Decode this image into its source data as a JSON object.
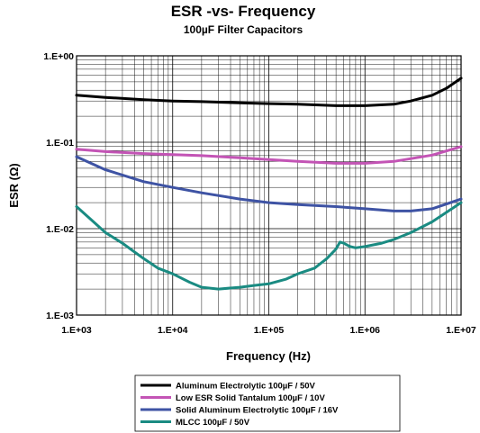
{
  "chart_data": {
    "type": "line",
    "title": "ESR -vs- Frequency",
    "subtitle": "100µF Filter Capacitors",
    "xlabel": "Frequency (Hz)",
    "ylabel": "ESR (Ω)",
    "x_scale": "log",
    "y_scale": "log",
    "xlim": [
      1000,
      10000000
    ],
    "ylim": [
      0.001,
      1
    ],
    "x_ticks": [
      "1.E+03",
      "1.E+04",
      "1.E+05",
      "1.E+06",
      "1.E+07"
    ],
    "y_ticks": [
      "1.E+00",
      "1.E-01",
      "1.E-02",
      "1.E-03"
    ],
    "grid": "on (major and minor, both axes)",
    "legend_position": "bottom-center",
    "series": [
      {
        "name": "Aluminum Electrolytic 100µF / 50V",
        "color": "#000000",
        "x": [
          1000,
          2000,
          5000,
          10000,
          20000,
          50000,
          100000,
          200000,
          500000,
          1000000,
          2000000,
          3000000,
          5000000,
          7000000,
          10000000
        ],
        "y": [
          0.35,
          0.33,
          0.31,
          0.3,
          0.295,
          0.285,
          0.28,
          0.275,
          0.265,
          0.265,
          0.275,
          0.3,
          0.35,
          0.42,
          0.55
        ]
      },
      {
        "name": "Low ESR Solid Tantalum 100µF / 10V",
        "color": "#c354b5",
        "x": [
          1000,
          2000,
          5000,
          10000,
          20000,
          50000,
          100000,
          200000,
          500000,
          1000000,
          2000000,
          5000000,
          10000000
        ],
        "y": [
          0.083,
          0.078,
          0.074,
          0.072,
          0.07,
          0.066,
          0.063,
          0.06,
          0.057,
          0.057,
          0.06,
          0.071,
          0.089
        ]
      },
      {
        "name": "Solid Aluminum Electrolytic 100µF / 16V",
        "color": "#3e53a4",
        "x": [
          1000,
          2000,
          5000,
          10000,
          20000,
          50000,
          100000,
          200000,
          500000,
          1000000,
          2000000,
          3000000,
          5000000,
          10000000
        ],
        "y": [
          0.068,
          0.048,
          0.035,
          0.03,
          0.026,
          0.022,
          0.02,
          0.019,
          0.018,
          0.017,
          0.016,
          0.016,
          0.017,
          0.022
        ]
      },
      {
        "name": "MLCC 100µF / 50V",
        "color": "#1a8b82",
        "x": [
          1000,
          1500,
          2000,
          3000,
          5000,
          7000,
          10000,
          15000,
          20000,
          30000,
          50000,
          70000,
          100000,
          150000,
          200000,
          300000,
          400000,
          500000,
          550000,
          600000,
          700000,
          800000,
          1000000,
          1500000,
          2000000,
          3000000,
          5000000,
          10000000
        ],
        "y": [
          0.018,
          0.012,
          0.009,
          0.0068,
          0.0045,
          0.0035,
          0.003,
          0.0024,
          0.0021,
          0.002,
          0.0021,
          0.0022,
          0.0023,
          0.0026,
          0.003,
          0.0035,
          0.0045,
          0.0058,
          0.007,
          0.0068,
          0.0062,
          0.006,
          0.0062,
          0.0068,
          0.0075,
          0.009,
          0.012,
          0.02
        ]
      }
    ]
  }
}
